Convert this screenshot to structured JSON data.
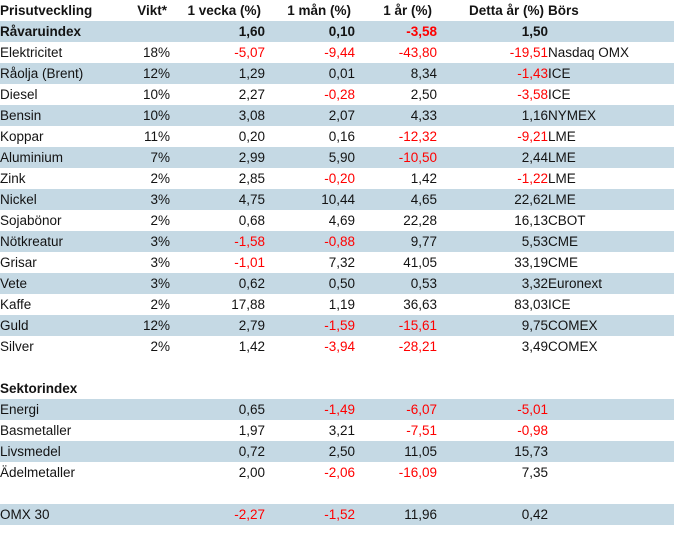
{
  "colors": {
    "row_alt_background": "#C5D9E4",
    "negative_value": "#FF0000",
    "text": "#131313"
  },
  "table": {
    "columns": [
      {
        "key": "name",
        "label": "Prisutveckling"
      },
      {
        "key": "vikt",
        "label": "Vikt*"
      },
      {
        "key": "vecka",
        "label": "1 vecka (%)"
      },
      {
        "key": "man",
        "label": "1 mån (%)"
      },
      {
        "key": "ar",
        "label": "1 år (%)"
      },
      {
        "key": "detta",
        "label": "Detta år (%)"
      },
      {
        "key": "bors",
        "label": "Börs"
      }
    ],
    "rows": [
      {
        "type": "summary",
        "shade": "blue",
        "bold": true,
        "name": "Råvaruindex",
        "vikt": "",
        "vecka": "1,60",
        "man": "0,10",
        "ar": "-3,58",
        "detta": "1,50",
        "bors": ""
      },
      {
        "type": "data",
        "shade": "white",
        "bold": false,
        "name": "Elektricitet",
        "vikt": "18%",
        "vecka": "-5,07",
        "man": "-9,44",
        "ar": "-43,80",
        "detta": "-19,51",
        "bors": "Nasdaq OMX"
      },
      {
        "type": "data",
        "shade": "blue",
        "bold": false,
        "name": "Råolja (Brent)",
        "vikt": "12%",
        "vecka": "1,29",
        "man": "0,01",
        "ar": "8,34",
        "detta": "-1,43",
        "bors": "ICE"
      },
      {
        "type": "data",
        "shade": "white",
        "bold": false,
        "name": "Diesel",
        "vikt": "10%",
        "vecka": "2,27",
        "man": "-0,28",
        "ar": "2,50",
        "detta": "-3,58",
        "bors": "ICE"
      },
      {
        "type": "data",
        "shade": "blue",
        "bold": false,
        "name": "Bensin",
        "vikt": "10%",
        "vecka": "3,08",
        "man": "2,07",
        "ar": "4,33",
        "detta": "1,16",
        "bors": "NYMEX"
      },
      {
        "type": "data",
        "shade": "white",
        "bold": false,
        "name": "Koppar",
        "vikt": "11%",
        "vecka": "0,20",
        "man": "0,16",
        "ar": "-12,32",
        "detta": "-9,21",
        "bors": "LME"
      },
      {
        "type": "data",
        "shade": "blue",
        "bold": false,
        "name": "Aluminium",
        "vikt": "7%",
        "vecka": "2,99",
        "man": "5,90",
        "ar": "-10,50",
        "detta": "2,44",
        "bors": "LME"
      },
      {
        "type": "data",
        "shade": "white",
        "bold": false,
        "name": "Zink",
        "vikt": "2%",
        "vecka": "2,85",
        "man": "-0,20",
        "ar": "1,42",
        "detta": "-1,22",
        "bors": "LME"
      },
      {
        "type": "data",
        "shade": "blue",
        "bold": false,
        "name": "Nickel",
        "vikt": "3%",
        "vecka": "4,75",
        "man": "10,44",
        "ar": "4,65",
        "detta": "22,62",
        "bors": "LME"
      },
      {
        "type": "data",
        "shade": "white",
        "bold": false,
        "name": "Sojabönor",
        "vikt": "2%",
        "vecka": "0,68",
        "man": "4,69",
        "ar": "22,28",
        "detta": "16,13",
        "bors": "CBOT"
      },
      {
        "type": "data",
        "shade": "blue",
        "bold": false,
        "name": "Nötkreatur",
        "vikt": "3%",
        "vecka": "-1,58",
        "man": "-0,88",
        "ar": "9,77",
        "detta": "5,53",
        "bors": "CME"
      },
      {
        "type": "data",
        "shade": "white",
        "bold": false,
        "name": "Grisar",
        "vikt": "3%",
        "vecka": "-1,01",
        "man": "7,32",
        "ar": "41,05",
        "detta": "33,19",
        "bors": "CME"
      },
      {
        "type": "data",
        "shade": "blue",
        "bold": false,
        "name": "Vete",
        "vikt": "3%",
        "vecka": "0,62",
        "man": "0,50",
        "ar": "0,53",
        "detta": "3,32",
        "bors": "Euronext"
      },
      {
        "type": "data",
        "shade": "white",
        "bold": false,
        "name": "Kaffe",
        "vikt": "2%",
        "vecka": "17,88",
        "man": "1,19",
        "ar": "36,63",
        "detta": "83,03",
        "bors": "ICE"
      },
      {
        "type": "data",
        "shade": "blue",
        "bold": false,
        "name": "Guld",
        "vikt": "12%",
        "vecka": "2,79",
        "man": "-1,59",
        "ar": "-15,61",
        "detta": "9,75",
        "bors": "COMEX"
      },
      {
        "type": "data",
        "shade": "white",
        "bold": false,
        "name": "Silver",
        "vikt": "2%",
        "vecka": "1,42",
        "man": "-3,94",
        "ar": "-28,21",
        "detta": "3,49",
        "bors": "COMEX"
      },
      {
        "type": "blank",
        "shade": "white",
        "bold": false,
        "name": "",
        "vikt": "",
        "vecka": "",
        "man": "",
        "ar": "",
        "detta": "",
        "bors": ""
      },
      {
        "type": "section",
        "shade": "white",
        "bold": true,
        "name": "Sektorindex",
        "vikt": "",
        "vecka": "",
        "man": "",
        "ar": "",
        "detta": "",
        "bors": ""
      },
      {
        "type": "data",
        "shade": "blue",
        "bold": false,
        "name": "Energi",
        "vikt": "",
        "vecka": "0,65",
        "man": "-1,49",
        "ar": "-6,07",
        "detta": "-5,01",
        "bors": ""
      },
      {
        "type": "data",
        "shade": "white",
        "bold": false,
        "name": "Basmetaller",
        "vikt": "",
        "vecka": "1,97",
        "man": "3,21",
        "ar": "-7,51",
        "detta": "-0,98",
        "bors": ""
      },
      {
        "type": "data",
        "shade": "blue",
        "bold": false,
        "name": "Livsmedel",
        "vikt": "",
        "vecka": "0,72",
        "man": "2,50",
        "ar": "11,05",
        "detta": "15,73",
        "bors": ""
      },
      {
        "type": "data",
        "shade": "white",
        "bold": false,
        "name": "Ädelmetaller",
        "vikt": "",
        "vecka": "2,00",
        "man": "-2,06",
        "ar": "-16,09",
        "detta": "7,35",
        "bors": ""
      },
      {
        "type": "blank",
        "shade": "white",
        "bold": false,
        "name": "",
        "vikt": "",
        "vecka": "",
        "man": "",
        "ar": "",
        "detta": "",
        "bors": ""
      },
      {
        "type": "data",
        "shade": "blue",
        "bold": false,
        "name": "OMX 30",
        "vikt": "",
        "vecka": "-2,27",
        "man": "-1,52",
        "ar": "11,96",
        "detta": "0,42",
        "bors": ""
      }
    ]
  }
}
